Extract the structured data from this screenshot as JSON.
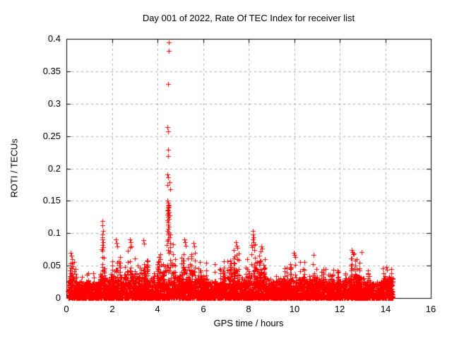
{
  "chart_data": {
    "type": "scatter",
    "title": "Day 001 of 2022, Rate Of TEC Index for receiver list",
    "xlabel": "GPS time / hours",
    "ylabel": "ROTI / TECUs",
    "xlim": [
      0,
      16
    ],
    "ylim": [
      0,
      0.4
    ],
    "xticks": [
      0,
      2,
      4,
      6,
      8,
      10,
      12,
      14,
      16
    ],
    "yticks": [
      0,
      0.05,
      0.1,
      0.15,
      0.2,
      0.25,
      0.3,
      0.35,
      0.4
    ],
    "ytick_labels": [
      "0",
      "0.05",
      "0.1",
      "0.15",
      "0.2",
      "0.25",
      "0.3",
      "0.35",
      "0.4"
    ],
    "grid": {
      "on": true,
      "color": "#a8a8a8",
      "dash": [
        3,
        4
      ]
    },
    "frame_color": "#000000",
    "marker": {
      "shape": "plus",
      "color": "#ff0000",
      "size": 7
    },
    "series_name": "ROTI",
    "data_extent": {
      "x_start": 0.08,
      "x_end": 14.32
    },
    "outlier_points": [
      [
        4.5,
        0.395
      ],
      [
        4.5,
        0.381
      ],
      [
        4.47,
        0.33
      ],
      [
        4.44,
        0.264
      ],
      [
        4.46,
        0.257
      ],
      [
        4.48,
        0.229
      ],
      [
        4.46,
        0.219
      ],
      [
        4.43,
        0.191
      ],
      [
        4.45,
        0.186
      ],
      [
        4.52,
        0.179
      ],
      [
        4.42,
        0.174
      ],
      [
        4.55,
        0.168
      ],
      [
        4.44,
        0.15
      ],
      [
        4.47,
        0.147
      ],
      [
        4.49,
        0.144
      ],
      [
        4.45,
        0.143
      ],
      [
        4.51,
        0.141
      ],
      [
        4.46,
        0.139
      ],
      [
        4.48,
        0.136
      ],
      [
        4.43,
        0.135
      ],
      [
        4.5,
        0.133
      ],
      [
        4.47,
        0.131
      ],
      [
        4.44,
        0.129
      ],
      [
        4.52,
        0.127
      ],
      [
        4.46,
        0.125
      ],
      [
        4.49,
        0.122
      ],
      [
        4.42,
        0.12
      ],
      [
        4.48,
        0.117
      ],
      [
        4.45,
        0.113
      ],
      [
        4.51,
        0.11
      ],
      [
        4.47,
        0.107
      ],
      [
        4.44,
        0.104
      ],
      [
        4.5,
        0.101
      ],
      [
        4.46,
        0.098
      ],
      [
        4.53,
        0.094
      ],
      [
        4.48,
        0.091
      ],
      [
        4.43,
        0.088
      ],
      [
        4.55,
        0.085
      ],
      [
        4.4,
        0.082
      ],
      [
        4.57,
        0.079
      ],
      [
        1.57,
        0.119
      ],
      [
        1.58,
        0.112
      ],
      [
        1.6,
        0.104
      ],
      [
        1.58,
        0.098
      ],
      [
        1.59,
        0.094
      ],
      [
        1.57,
        0.09
      ],
      [
        1.6,
        0.086
      ],
      [
        1.58,
        0.082
      ],
      [
        1.61,
        0.078
      ],
      [
        1.56,
        0.075
      ],
      [
        8.18,
        0.103
      ],
      [
        8.2,
        0.098
      ],
      [
        8.22,
        0.094
      ],
      [
        8.19,
        0.09
      ],
      [
        8.21,
        0.086
      ],
      [
        8.23,
        0.082
      ],
      [
        8.17,
        0.078
      ],
      [
        8.24,
        0.074
      ],
      [
        0.18,
        0.07
      ],
      [
        0.22,
        0.065
      ],
      [
        0.25,
        0.06
      ],
      [
        2.18,
        0.09
      ],
      [
        2.21,
        0.085
      ],
      [
        2.23,
        0.08
      ],
      [
        2.79,
        0.091
      ],
      [
        2.82,
        0.086
      ],
      [
        2.85,
        0.08
      ],
      [
        3.38,
        0.089
      ],
      [
        3.42,
        0.084
      ],
      [
        5.18,
        0.09
      ],
      [
        5.22,
        0.086
      ],
      [
        5.25,
        0.081
      ],
      [
        5.58,
        0.085
      ],
      [
        5.62,
        0.08
      ],
      [
        7.43,
        0.086
      ],
      [
        7.47,
        0.081
      ],
      [
        7.5,
        0.077
      ],
      [
        8.55,
        0.08
      ],
      [
        8.58,
        0.076
      ],
      [
        9.98,
        0.07
      ],
      [
        10.02,
        0.066
      ],
      [
        10.85,
        0.067
      ],
      [
        12.52,
        0.074
      ],
      [
        12.56,
        0.071
      ],
      [
        12.6,
        0.068
      ],
      [
        12.97,
        0.071
      ],
      [
        14.05,
        0.048
      ],
      [
        14.08,
        0.044
      ]
    ],
    "noise_envelope": [
      [
        0.1,
        0.045
      ],
      [
        0.2,
        0.07
      ],
      [
        0.35,
        0.055
      ],
      [
        0.5,
        0.04
      ],
      [
        0.8,
        0.034
      ],
      [
        1.0,
        0.045
      ],
      [
        1.3,
        0.04
      ],
      [
        1.5,
        0.06
      ],
      [
        1.6,
        0.1
      ],
      [
        1.7,
        0.05
      ],
      [
        1.9,
        0.055
      ],
      [
        2.2,
        0.085
      ],
      [
        2.4,
        0.06
      ],
      [
        2.6,
        0.075
      ],
      [
        2.8,
        0.088
      ],
      [
        3.0,
        0.07
      ],
      [
        3.2,
        0.06
      ],
      [
        3.4,
        0.085
      ],
      [
        3.6,
        0.065
      ],
      [
        3.8,
        0.07
      ],
      [
        4.0,
        0.065
      ],
      [
        4.2,
        0.08
      ],
      [
        4.35,
        0.09
      ],
      [
        4.5,
        0.13
      ],
      [
        4.65,
        0.09
      ],
      [
        4.8,
        0.06
      ],
      [
        5.0,
        0.07
      ],
      [
        5.2,
        0.088
      ],
      [
        5.4,
        0.06
      ],
      [
        5.6,
        0.08
      ],
      [
        5.8,
        0.055
      ],
      [
        6.0,
        0.065
      ],
      [
        6.2,
        0.05
      ],
      [
        6.4,
        0.058
      ],
      [
        6.6,
        0.048
      ],
      [
        6.8,
        0.052
      ],
      [
        7.0,
        0.058
      ],
      [
        7.2,
        0.065
      ],
      [
        7.45,
        0.082
      ],
      [
        7.6,
        0.068
      ],
      [
        7.8,
        0.058
      ],
      [
        8.0,
        0.068
      ],
      [
        8.2,
        0.095
      ],
      [
        8.4,
        0.075
      ],
      [
        8.6,
        0.078
      ],
      [
        8.8,
        0.058
      ],
      [
        9.0,
        0.052
      ],
      [
        9.2,
        0.047
      ],
      [
        9.4,
        0.055
      ],
      [
        9.6,
        0.047
      ],
      [
        9.8,
        0.055
      ],
      [
        10.0,
        0.068
      ],
      [
        10.2,
        0.06
      ],
      [
        10.4,
        0.055
      ],
      [
        10.6,
        0.05
      ],
      [
        10.8,
        0.062
      ],
      [
        11.0,
        0.055
      ],
      [
        11.2,
        0.05
      ],
      [
        11.4,
        0.046
      ],
      [
        11.6,
        0.05
      ],
      [
        11.8,
        0.045
      ],
      [
        12.0,
        0.05
      ],
      [
        12.2,
        0.055
      ],
      [
        12.4,
        0.065
      ],
      [
        12.6,
        0.072
      ],
      [
        12.8,
        0.06
      ],
      [
        13.0,
        0.062
      ],
      [
        13.2,
        0.046
      ],
      [
        13.4,
        0.042
      ],
      [
        13.6,
        0.046
      ],
      [
        13.8,
        0.05
      ],
      [
        14.0,
        0.055
      ],
      [
        14.3,
        0.048
      ]
    ],
    "noise_model": {
      "column_step": 0.01,
      "core_points": 3,
      "core_base": 0.008,
      "core_env_frac": 0.25,
      "core_cap": 0.028,
      "mid_prob": 0.38,
      "spike_prob": 0.11,
      "end_blob_start": 13.95,
      "end_blob_core": 0.03,
      "seed": 20220101
    }
  }
}
